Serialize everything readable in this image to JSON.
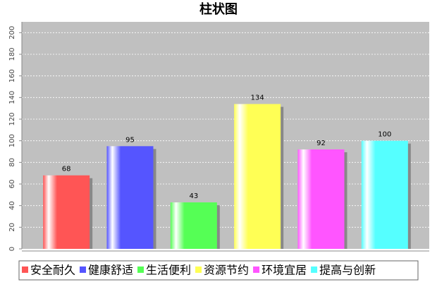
{
  "chart_data": {
    "type": "bar",
    "title": "柱状图",
    "categories": [
      "安全耐久",
      "健康舒适",
      "生活便利",
      "资源节约",
      "环境宜居",
      "提高与创新"
    ],
    "values": [
      68,
      95,
      43,
      134,
      92,
      100
    ],
    "colors": [
      "#ff5555",
      "#5555ff",
      "#55ff55",
      "#ffff55",
      "#ff55ff",
      "#55ffff"
    ],
    "ylim": [
      0,
      210
    ],
    "yticks": [
      0,
      20,
      40,
      60,
      80,
      100,
      120,
      140,
      160,
      180,
      200
    ],
    "grid": true
  }
}
